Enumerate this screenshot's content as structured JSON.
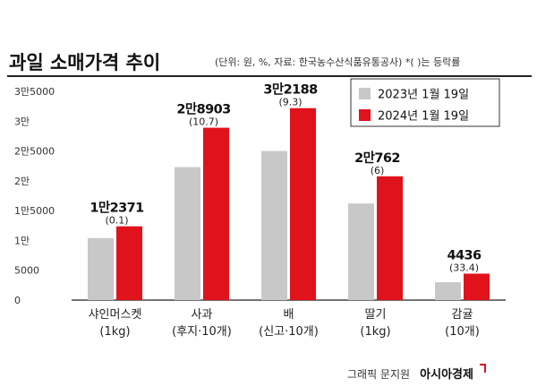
{
  "chart_data": {
    "type": "bar",
    "title": "과일 소매가격 추이",
    "subtitle": "(단위: 원, %, 자료: 한국농수산식품유통공사) *( )는 등락률",
    "categories": [
      "샤인머스켓\n(1kg)",
      "사과\n(후지·10개)",
      "배\n(신고·10개)",
      "딸기\n(1kg)",
      "감귤\n(10개)"
    ],
    "y_tick_labels": [
      "0",
      "5000",
      "1만",
      "1만5000",
      "2만",
      "2만5000",
      "3만",
      "3만5000"
    ],
    "y_ticks": [
      0,
      5000,
      10000,
      15000,
      20000,
      25000,
      30000,
      35000
    ],
    "ylim": [
      0,
      35000
    ],
    "series": [
      {
        "name": "2023년 1월 19일",
        "color": "#c8c8c8",
        "values": [
          10400,
          22300,
          25000,
          16200,
          3000
        ]
      },
      {
        "name": "2024년 1월 19일",
        "color": "#e0121b",
        "values": [
          12371,
          28903,
          32188,
          20762,
          4436
        ]
      }
    ],
    "value_labels": [
      "1만2371",
      "2만8903",
      "3만2188",
      "2만762",
      "4436"
    ],
    "change_labels": [
      "(0.1)",
      "(10.7)",
      "(9.3)",
      "(6)",
      "(33.4)"
    ],
    "legend_position": "top-right",
    "grid": false
  },
  "footer": {
    "credit": "그래픽 문지원",
    "brand": "아시아경제"
  }
}
